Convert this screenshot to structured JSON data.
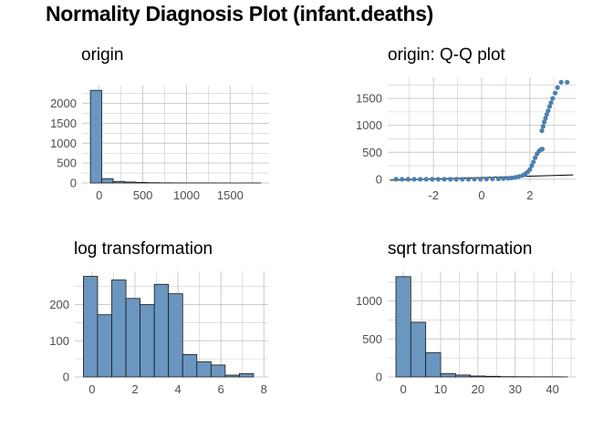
{
  "title": "Normality Diagnosis Plot (infant.deaths)",
  "colors": {
    "bar_fill": "#6a96c0",
    "bar_stroke": "#1a1a1a",
    "point": "#4a80b0",
    "grid": "#cccccc",
    "line": "#000000"
  },
  "chart_data": [
    {
      "type": "bar",
      "title": "origin",
      "xlabel": "",
      "ylabel": "",
      "bins": [
        {
          "x0": -100,
          "x1": 30,
          "count": 2330
        },
        {
          "x0": 30,
          "x1": 160,
          "count": 110
        },
        {
          "x0": 160,
          "x1": 290,
          "count": 40
        },
        {
          "x0": 290,
          "x1": 420,
          "count": 25
        },
        {
          "x0": 420,
          "x1": 550,
          "count": 15
        },
        {
          "x0": 550,
          "x1": 680,
          "count": 8
        },
        {
          "x0": 680,
          "x1": 810,
          "count": 5
        },
        {
          "x0": 810,
          "x1": 940,
          "count": 3
        },
        {
          "x0": 940,
          "x1": 1070,
          "count": 2
        },
        {
          "x0": 1070,
          "x1": 1200,
          "count": 2
        },
        {
          "x0": 1200,
          "x1": 1330,
          "count": 2
        },
        {
          "x0": 1330,
          "x1": 1460,
          "count": 1
        },
        {
          "x0": 1460,
          "x1": 1590,
          "count": 1
        },
        {
          "x0": 1590,
          "x1": 1720,
          "count": 1
        },
        {
          "x0": 1720,
          "x1": 1850,
          "count": 1
        }
      ],
      "xlim": [
        -195,
        1945
      ],
      "ylim": [
        0,
        2450
      ],
      "xticks": [
        0,
        500,
        1000,
        1500
      ],
      "yticks": [
        0,
        500,
        1000,
        1500,
        2000
      ],
      "grid": true
    },
    {
      "type": "scatter",
      "title": "origin: Q-Q plot",
      "xlabel": "",
      "ylabel": "",
      "points": [
        [
          -3.55,
          0
        ],
        [
          -3.3,
          0
        ],
        [
          -3.05,
          0
        ],
        [
          -2.8,
          0
        ],
        [
          -2.55,
          0
        ],
        [
          -2.3,
          0
        ],
        [
          -2.05,
          0
        ],
        [
          -1.8,
          0
        ],
        [
          -1.55,
          0
        ],
        [
          -1.3,
          0
        ],
        [
          -1.05,
          0
        ],
        [
          -0.8,
          0
        ],
        [
          -0.55,
          0
        ],
        [
          -0.3,
          1
        ],
        [
          -0.05,
          2
        ],
        [
          0.2,
          3
        ],
        [
          0.45,
          5
        ],
        [
          0.7,
          8
        ],
        [
          0.9,
          12
        ],
        [
          1.1,
          18
        ],
        [
          1.25,
          25
        ],
        [
          1.4,
          35
        ],
        [
          1.55,
          50
        ],
        [
          1.7,
          70
        ],
        [
          1.8,
          95
        ],
        [
          1.9,
          130
        ],
        [
          2.0,
          180
        ],
        [
          2.08,
          250
        ],
        [
          2.15,
          320
        ],
        [
          2.22,
          400
        ],
        [
          2.3,
          470
        ],
        [
          2.38,
          520
        ],
        [
          2.45,
          550
        ],
        [
          2.52,
          560
        ],
        [
          2.5,
          900
        ],
        [
          2.55,
          980
        ],
        [
          2.6,
          1060
        ],
        [
          2.65,
          1130
        ],
        [
          2.7,
          1200
        ],
        [
          2.76,
          1270
        ],
        [
          2.82,
          1350
        ],
        [
          2.88,
          1420
        ],
        [
          2.95,
          1500
        ],
        [
          3.05,
          1600
        ],
        [
          3.15,
          1700
        ],
        [
          3.3,
          1800
        ],
        [
          3.55,
          1800
        ]
      ],
      "reference_line": [
        [
          -3.8,
          -20
        ],
        [
          3.8,
          80
        ]
      ],
      "xlim": [
        -3.9,
        3.9
      ],
      "ylim": [
        -70,
        1890
      ],
      "xticks": [
        -2,
        0,
        2
      ],
      "yticks": [
        0,
        500,
        1000,
        1500
      ],
      "grid": true
    },
    {
      "type": "bar",
      "title": "log transformation",
      "xlabel": "",
      "ylabel": "",
      "bins": [
        {
          "x0": -0.4,
          "x1": 0.26,
          "count": 278
        },
        {
          "x0": 0.26,
          "x1": 0.92,
          "count": 172
        },
        {
          "x0": 0.92,
          "x1": 1.58,
          "count": 268
        },
        {
          "x0": 1.58,
          "x1": 2.24,
          "count": 217
        },
        {
          "x0": 2.24,
          "x1": 2.9,
          "count": 200
        },
        {
          "x0": 2.9,
          "x1": 3.56,
          "count": 256
        },
        {
          "x0": 3.56,
          "x1": 4.22,
          "count": 230
        },
        {
          "x0": 4.22,
          "x1": 4.88,
          "count": 62
        },
        {
          "x0": 4.88,
          "x1": 5.54,
          "count": 42
        },
        {
          "x0": 5.54,
          "x1": 6.2,
          "count": 33
        },
        {
          "x0": 6.2,
          "x1": 6.86,
          "count": 5
        },
        {
          "x0": 6.86,
          "x1": 7.52,
          "count": 9
        }
      ],
      "xlim": [
        -0.8,
        8.2
      ],
      "ylim": [
        0,
        292
      ],
      "xticks": [
        0,
        2,
        4,
        6,
        8
      ],
      "yticks": [
        0,
        100,
        200
      ],
      "grid": true
    },
    {
      "type": "bar",
      "title": "sqrt transformation",
      "xlabel": "",
      "ylabel": "",
      "bins": [
        {
          "x0": -2,
          "x1": 2,
          "count": 1320
        },
        {
          "x0": 2,
          "x1": 6,
          "count": 720
        },
        {
          "x0": 6,
          "x1": 10,
          "count": 320
        },
        {
          "x0": 10,
          "x1": 14,
          "count": 45
        },
        {
          "x0": 14,
          "x1": 18,
          "count": 25
        },
        {
          "x0": 18,
          "x1": 22,
          "count": 12
        },
        {
          "x0": 22,
          "x1": 26,
          "count": 8
        },
        {
          "x0": 26,
          "x1": 30,
          "count": 4
        },
        {
          "x0": 30,
          "x1": 34,
          "count": 3
        },
        {
          "x0": 34,
          "x1": 38,
          "count": 2
        },
        {
          "x0": 38,
          "x1": 42,
          "count": 2
        },
        {
          "x0": 42,
          "x1": 44,
          "count": 1
        }
      ],
      "xlim": [
        -4.2,
        46.2
      ],
      "ylim": [
        0,
        1390
      ],
      "xticks": [
        0,
        10,
        20,
        30,
        40
      ],
      "yticks": [
        0,
        500,
        1000
      ],
      "grid": true
    }
  ]
}
